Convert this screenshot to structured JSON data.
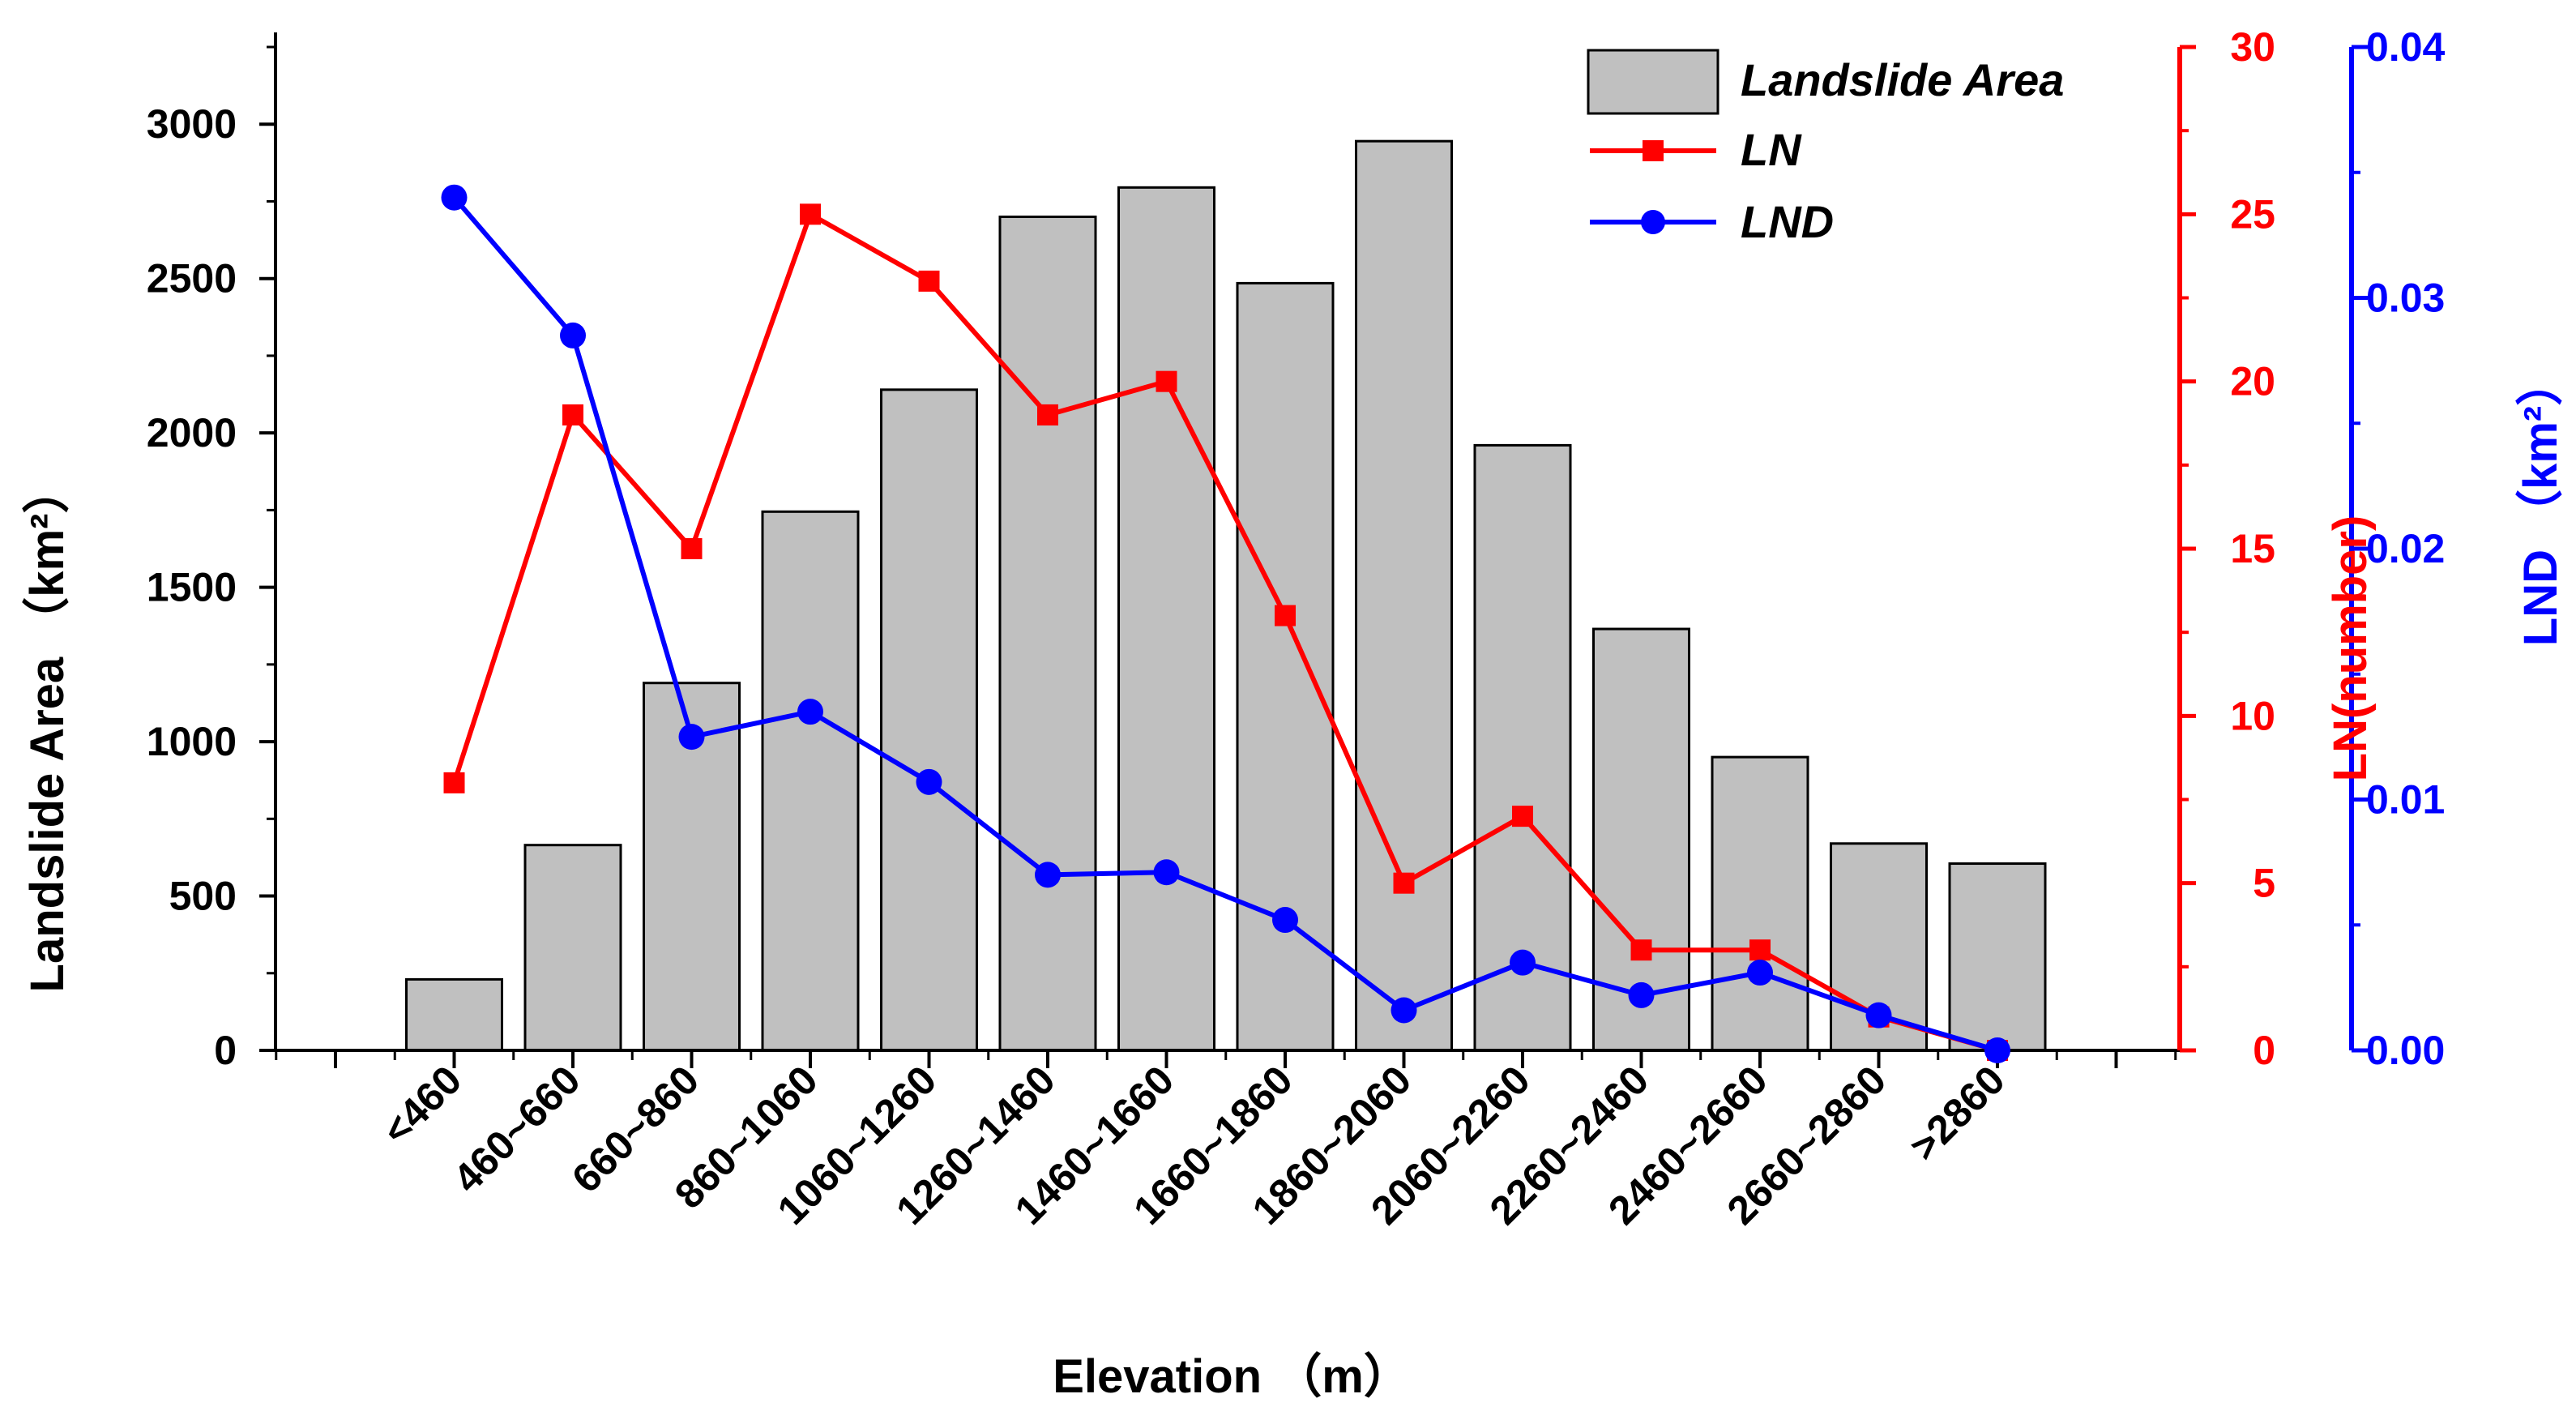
{
  "chart_data": {
    "type": "bar+line",
    "categories": [
      "<460",
      "460~660",
      "660~860",
      "860~1060",
      "1060~1260",
      "1260~1460",
      "1460~1660",
      "1660~1860",
      "1860~2060",
      "2060~2260",
      "2260~2460",
      "2460~2660",
      "2660~2860",
      ">2860"
    ],
    "series": [
      {
        "name": "Landslide Area",
        "type": "bar",
        "axis": "left",
        "color": "#c0c0c0",
        "values": [
          230,
          665,
          1190,
          1745,
          2140,
          2700,
          2795,
          2485,
          2945,
          1960,
          1365,
          950,
          670,
          605
        ]
      },
      {
        "name": "LN",
        "type": "line",
        "axis": "right1",
        "color": "#ff0000",
        "marker": "square",
        "values": [
          8,
          19,
          15,
          25,
          23,
          19,
          20,
          13,
          5,
          7,
          3,
          3,
          1,
          0
        ]
      },
      {
        "name": "LND",
        "type": "line",
        "axis": "right2",
        "color": "#0000ff",
        "marker": "circle",
        "values": [
          0.034,
          0.0285,
          0.0125,
          0.0135,
          0.0107,
          0.007,
          0.0071,
          0.0052,
          0.0016,
          0.0035,
          0.0022,
          0.0031,
          0.0014,
          0.0
        ]
      }
    ],
    "axes": {
      "left": {
        "title": "Landslide Area （km²）",
        "min": 0,
        "max": 3250,
        "ticks": [
          0,
          500,
          1000,
          1500,
          2000,
          2500,
          3000
        ],
        "color": "#000000"
      },
      "right1": {
        "title": "LN(number)",
        "min": 0,
        "max": 30,
        "ticks": [
          0,
          5,
          10,
          15,
          20,
          25,
          30
        ],
        "color": "#ff0000"
      },
      "right2": {
        "title": "LND （km²）",
        "min": 0,
        "max": 0.04,
        "ticks": [
          "0.00",
          "0.01",
          "0.02",
          "0.03",
          "0.04"
        ],
        "color": "#0000ff"
      },
      "x": {
        "title": "Elevation （m）"
      }
    },
    "legend": {
      "position": "top-right",
      "entries": [
        "Landslide Area",
        "LN",
        "LND"
      ]
    },
    "grid": false
  }
}
